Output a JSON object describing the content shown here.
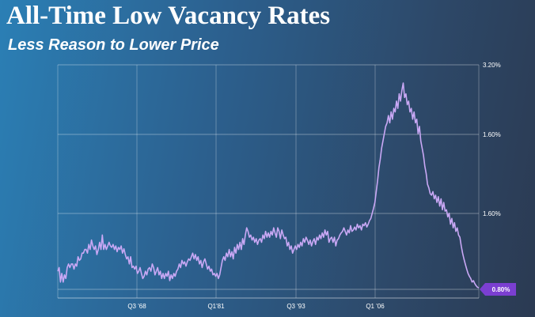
{
  "title": "All-Time Low Vacancy Rates",
  "subtitle": "Less Reason to Lower Price",
  "chart_data": {
    "type": "line",
    "title": "All-Time Low Vacancy Rates",
    "subtitle": "Less Reason to Lower Price",
    "xlabel": "",
    "ylabel": "",
    "grid": true,
    "line_color": "#c9a8f5",
    "callout_color": "#7b3fd1",
    "y_tick_labels": [
      "3.20%",
      "1.60%",
      "1.60%"
    ],
    "x_tick_labels": [
      "Q3 '68",
      "Q1'81",
      "Q3 '93",
      "Q1 '06"
    ],
    "callout_label": "0.80%",
    "values": [
      0.25,
      0.3,
      0.1,
      0.22,
      0.1,
      0.2,
      0.15,
      0.3,
      0.35,
      0.3,
      0.35,
      0.35,
      0.28,
      0.35,
      0.32,
      0.45,
      0.4,
      0.42,
      0.5,
      0.5,
      0.55,
      0.55,
      0.5,
      0.62,
      0.55,
      0.68,
      0.6,
      0.55,
      0.6,
      0.48,
      0.55,
      0.65,
      0.55,
      0.75,
      0.55,
      0.62,
      0.55,
      0.6,
      0.65,
      0.6,
      0.58,
      0.62,
      0.55,
      0.6,
      0.52,
      0.58,
      0.55,
      0.6,
      0.5,
      0.56,
      0.48,
      0.42,
      0.45,
      0.35,
      0.45,
      0.3,
      0.32,
      0.28,
      0.32,
      0.22,
      0.25,
      0.3,
      0.22,
      0.15,
      0.18,
      0.25,
      0.2,
      0.28,
      0.3,
      0.25,
      0.35,
      0.3,
      0.2,
      0.25,
      0.3,
      0.2,
      0.25,
      0.15,
      0.22,
      0.15,
      0.22,
      0.18,
      0.25,
      0.12,
      0.2,
      0.15,
      0.22,
      0.18,
      0.25,
      0.28,
      0.35,
      0.3,
      0.4,
      0.35,
      0.38,
      0.32,
      0.38,
      0.42,
      0.4,
      0.45,
      0.5,
      0.42,
      0.48,
      0.4,
      0.45,
      0.35,
      0.4,
      0.3,
      0.38,
      0.42,
      0.35,
      0.28,
      0.32,
      0.25,
      0.28,
      0.2,
      0.22,
      0.18,
      0.22,
      0.15,
      0.2,
      0.3,
      0.4,
      0.45,
      0.4,
      0.5,
      0.45,
      0.55,
      0.45,
      0.52,
      0.42,
      0.58,
      0.5,
      0.62,
      0.55,
      0.65,
      0.55,
      0.7,
      0.62,
      0.75,
      0.85,
      0.8,
      0.72,
      0.75,
      0.68,
      0.72,
      0.65,
      0.7,
      0.62,
      0.68,
      0.7,
      0.65,
      0.75,
      0.7,
      0.8,
      0.72,
      0.78,
      0.72,
      0.8,
      0.75,
      0.85,
      0.78,
      0.72,
      0.85,
      0.8,
      0.7,
      0.82,
      0.75,
      0.7,
      0.72,
      0.6,
      0.65,
      0.55,
      0.6,
      0.5,
      0.55,
      0.6,
      0.55,
      0.62,
      0.58,
      0.65,
      0.6,
      0.7,
      0.65,
      0.72,
      0.68,
      0.62,
      0.68,
      0.6,
      0.66,
      0.7,
      0.62,
      0.72,
      0.68,
      0.75,
      0.7,
      0.78,
      0.72,
      0.82,
      0.75,
      0.8,
      0.65,
      0.7,
      0.72,
      0.65,
      0.72,
      0.6,
      0.68,
      0.7,
      0.75,
      0.78,
      0.8,
      0.85,
      0.8,
      0.75,
      0.82,
      0.78,
      0.88,
      0.8,
      0.82,
      0.86,
      0.82,
      0.9,
      0.85,
      0.88,
      0.82,
      0.9,
      0.88,
      0.92,
      0.86,
      0.9,
      0.95,
      0.98,
      1.05,
      1.12,
      1.2,
      1.35,
      1.5,
      1.68,
      1.8,
      1.95,
      2.05,
      2.15,
      2.25,
      2.3,
      2.4,
      2.3,
      2.45,
      2.35,
      2.5,
      2.45,
      2.6,
      2.5,
      2.7,
      2.6,
      2.75,
      2.85,
      2.65,
      2.7,
      2.55,
      2.6,
      2.45,
      2.5,
      2.35,
      2.45,
      2.3,
      2.35,
      2.15,
      2.25,
      2.05,
      1.95,
      1.85,
      1.7,
      1.6,
      1.45,
      1.4,
      1.32,
      1.3,
      1.35,
      1.25,
      1.3,
      1.2,
      1.28,
      1.15,
      1.25,
      1.1,
      1.2,
      1.08,
      1.1,
      1.0,
      1.05,
      0.9,
      0.98,
      0.85,
      0.92,
      0.8,
      0.85,
      0.75,
      0.72,
      0.6,
      0.5,
      0.42,
      0.35,
      0.28,
      0.22,
      0.18,
      0.15,
      0.1,
      0.12,
      0.08,
      0.05,
      0.03,
      0.02
    ]
  }
}
